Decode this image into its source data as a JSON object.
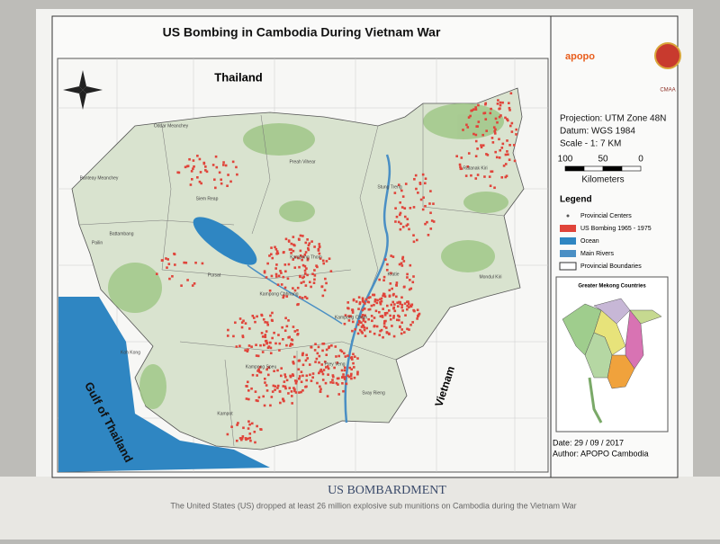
{
  "title": "US Bombing in Cambodia During Vietnam War",
  "map": {
    "labels": {
      "north": "Thailand",
      "east": "Vietnam",
      "sea": "Gulf of Thailand"
    },
    "provinces": [
      "Oddar Meanchey",
      "Preah Vihear",
      "Stung Treng",
      "Ratanak Kiri",
      "Banteay Meanchey",
      "Siem Reap",
      "Battambang",
      "Pailin",
      "Kampong Thom",
      "Kratie",
      "Mondul Kiri",
      "Pursat",
      "Kampong Chhnang",
      "Kampong Cham",
      "Kampong Speu",
      "Prey Veng",
      "Svay Rieng",
      "Koh Kong",
      "Kampot"
    ]
  },
  "info": {
    "projection": "Projection: UTM Zone 48N",
    "datum": "Datum: WGS 1984",
    "scale": "Scale - 1: 7 KM",
    "scale_bar": [
      "100",
      "50",
      "0"
    ],
    "scale_unit": "Kilometers"
  },
  "legend": {
    "title": "Legend",
    "items": [
      {
        "label": "Provincial Centers",
        "kind": "dot",
        "color": "#555555"
      },
      {
        "label": "US Bombing 1965 - 1975",
        "kind": "box",
        "color": "#e0443a"
      },
      {
        "label": "Ocean",
        "kind": "box",
        "color": "#2f86c2"
      },
      {
        "label": "Main Rivers",
        "kind": "box",
        "color": "#4a8fc4"
      },
      {
        "label": "Provincial Boundaries",
        "kind": "outline",
        "color": "#ffffff"
      }
    ]
  },
  "inset": {
    "title": "Greater Mekong Countries"
  },
  "logos": {
    "apopo": "apopo",
    "cmaa": "CMAA"
  },
  "date": "Date: 29 / 09 / 2017",
  "author": "Author: APOPO Cambodia",
  "footer": {
    "heading": "US BOMBARDMENT",
    "caption": "The United States (US) dropped at least 26 million explosive sub munitions on Cambodia during the Vietnam War"
  }
}
